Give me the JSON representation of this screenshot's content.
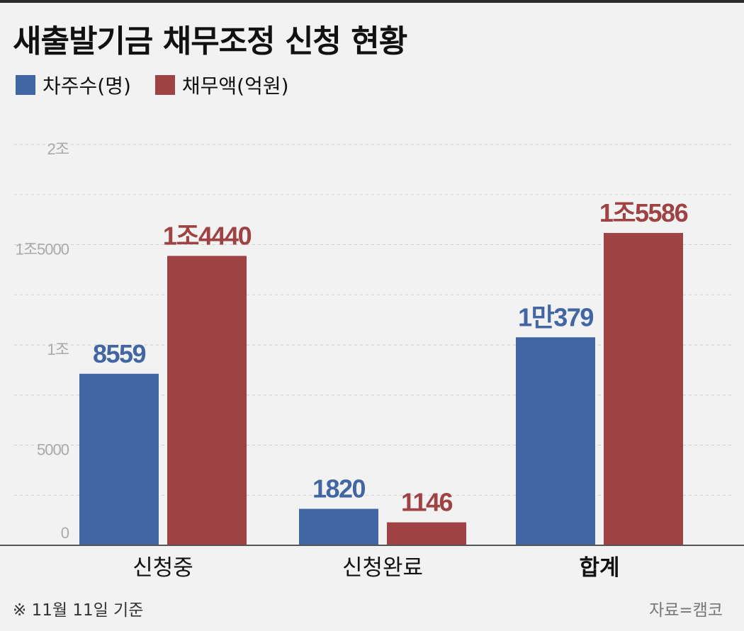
{
  "title": "새출발기금 채무조정 신청 현황",
  "footnote": "※ 11월 11일 기준",
  "source": "자료=캠코",
  "colors": {
    "borrowers": "#4166a3",
    "debt": "#9e4244",
    "grid": "#cfcfcf",
    "axis": "#555555",
    "tick": "#aaaaaa"
  },
  "chart_data": {
    "type": "bar",
    "categories": [
      "신청중",
      "신청완료",
      "합계"
    ],
    "bold_category": "합계",
    "series": [
      {
        "name": "차주수(명)",
        "values": [
          8559,
          1820,
          10379
        ],
        "labels": [
          "8559",
          "1820",
          "1만379"
        ]
      },
      {
        "name": "채무액(억원)",
        "values": [
          14440,
          1146,
          15586
        ],
        "labels": [
          "1조4440",
          "1146",
          "1조5586"
        ]
      }
    ],
    "yticks": [
      {
        "value": 0,
        "label": "0"
      },
      {
        "value": 5000,
        "label": "5000"
      },
      {
        "value": 10000,
        "label": "1조"
      },
      {
        "value": 15000,
        "label": "1조5000"
      },
      {
        "value": 20000,
        "label": "2조"
      }
    ],
    "ylim": [
      0,
      20000
    ],
    "grid": true,
    "legend": "top-left"
  }
}
